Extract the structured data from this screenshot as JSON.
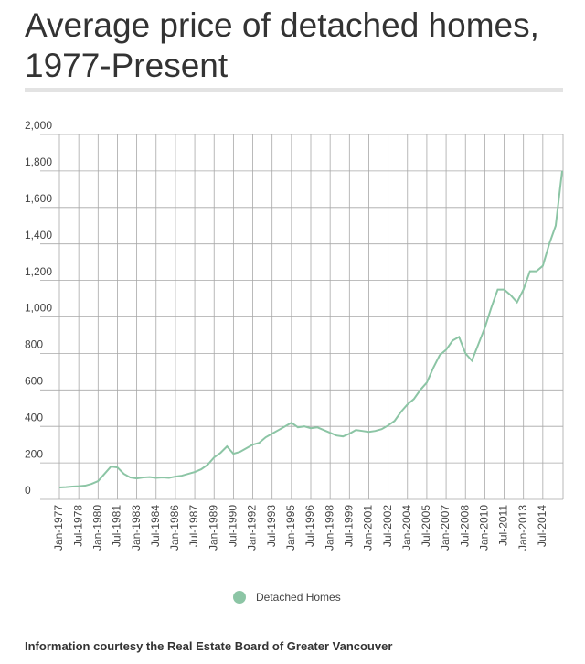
{
  "chart_data": {
    "type": "line",
    "title": "Average price of detached homes, 1977-Present",
    "source": "Information courtesy the Real Estate Board of Greater Vancouver",
    "categories": [
      "Jan-1977",
      null,
      null,
      "Jul-1978",
      null,
      null,
      "Jan-1980",
      null,
      null,
      "Jul-1981",
      null,
      null,
      "Jan-1983",
      null,
      null,
      "Jul-1984",
      null,
      null,
      "Jan-1986",
      null,
      null,
      "Jul-1987",
      null,
      null,
      "Jan-1989",
      null,
      null,
      "Jul-1990",
      null,
      null,
      "Jan-1992",
      null,
      null,
      "Jul-1993",
      null,
      null,
      "Jan-1995",
      null,
      null,
      "Jul-1996",
      null,
      null,
      "Jan-1998",
      null,
      null,
      "Jul-1999",
      null,
      null,
      "Jan-2001",
      null,
      null,
      "Jul-2002",
      null,
      null,
      "Jan-2004",
      null,
      null,
      "Jul-2005",
      null,
      null,
      "Jan-2007",
      null,
      null,
      "Jul-2008",
      null,
      null,
      "Jan-2010",
      null,
      null,
      "Jul-2011",
      null,
      null,
      "Jan-2013",
      null,
      null,
      "Jul-2014",
      null,
      null,
      null
    ],
    "series": [
      {
        "name": "Detached Homes",
        "color": "#8cc5a5",
        "values": [
          65,
          67,
          70,
          72,
          75,
          85,
          100,
          140,
          180,
          175,
          140,
          120,
          115,
          120,
          122,
          118,
          120,
          118,
          125,
          130,
          140,
          150,
          165,
          190,
          230,
          255,
          290,
          250,
          260,
          280,
          300,
          310,
          340,
          360,
          380,
          400,
          420,
          395,
          400,
          390,
          395,
          380,
          365,
          350,
          345,
          360,
          380,
          375,
          370,
          375,
          385,
          405,
          430,
          480,
          520,
          550,
          600,
          640,
          720,
          790,
          820,
          870,
          890,
          800,
          760,
          850,
          940,
          1050,
          1150,
          1150,
          1120,
          1080,
          1150,
          1250,
          1250,
          1280,
          1400,
          1500,
          1800
        ]
      }
    ],
    "ylim": [
      0,
      2000
    ],
    "yticks": [
      0,
      200,
      400,
      600,
      800,
      {
        "value": 1000,
        "label": "1,000"
      },
      {
        "value": 1200,
        "label": "1,200"
      },
      {
        "value": 1400,
        "label": "1,400"
      },
      {
        "value": 1600,
        "label": "1,600"
      },
      {
        "value": 1800,
        "label": "1,800"
      },
      {
        "value": 2000,
        "label": "2,000"
      }
    ],
    "grid": true,
    "legend": "bottom"
  }
}
